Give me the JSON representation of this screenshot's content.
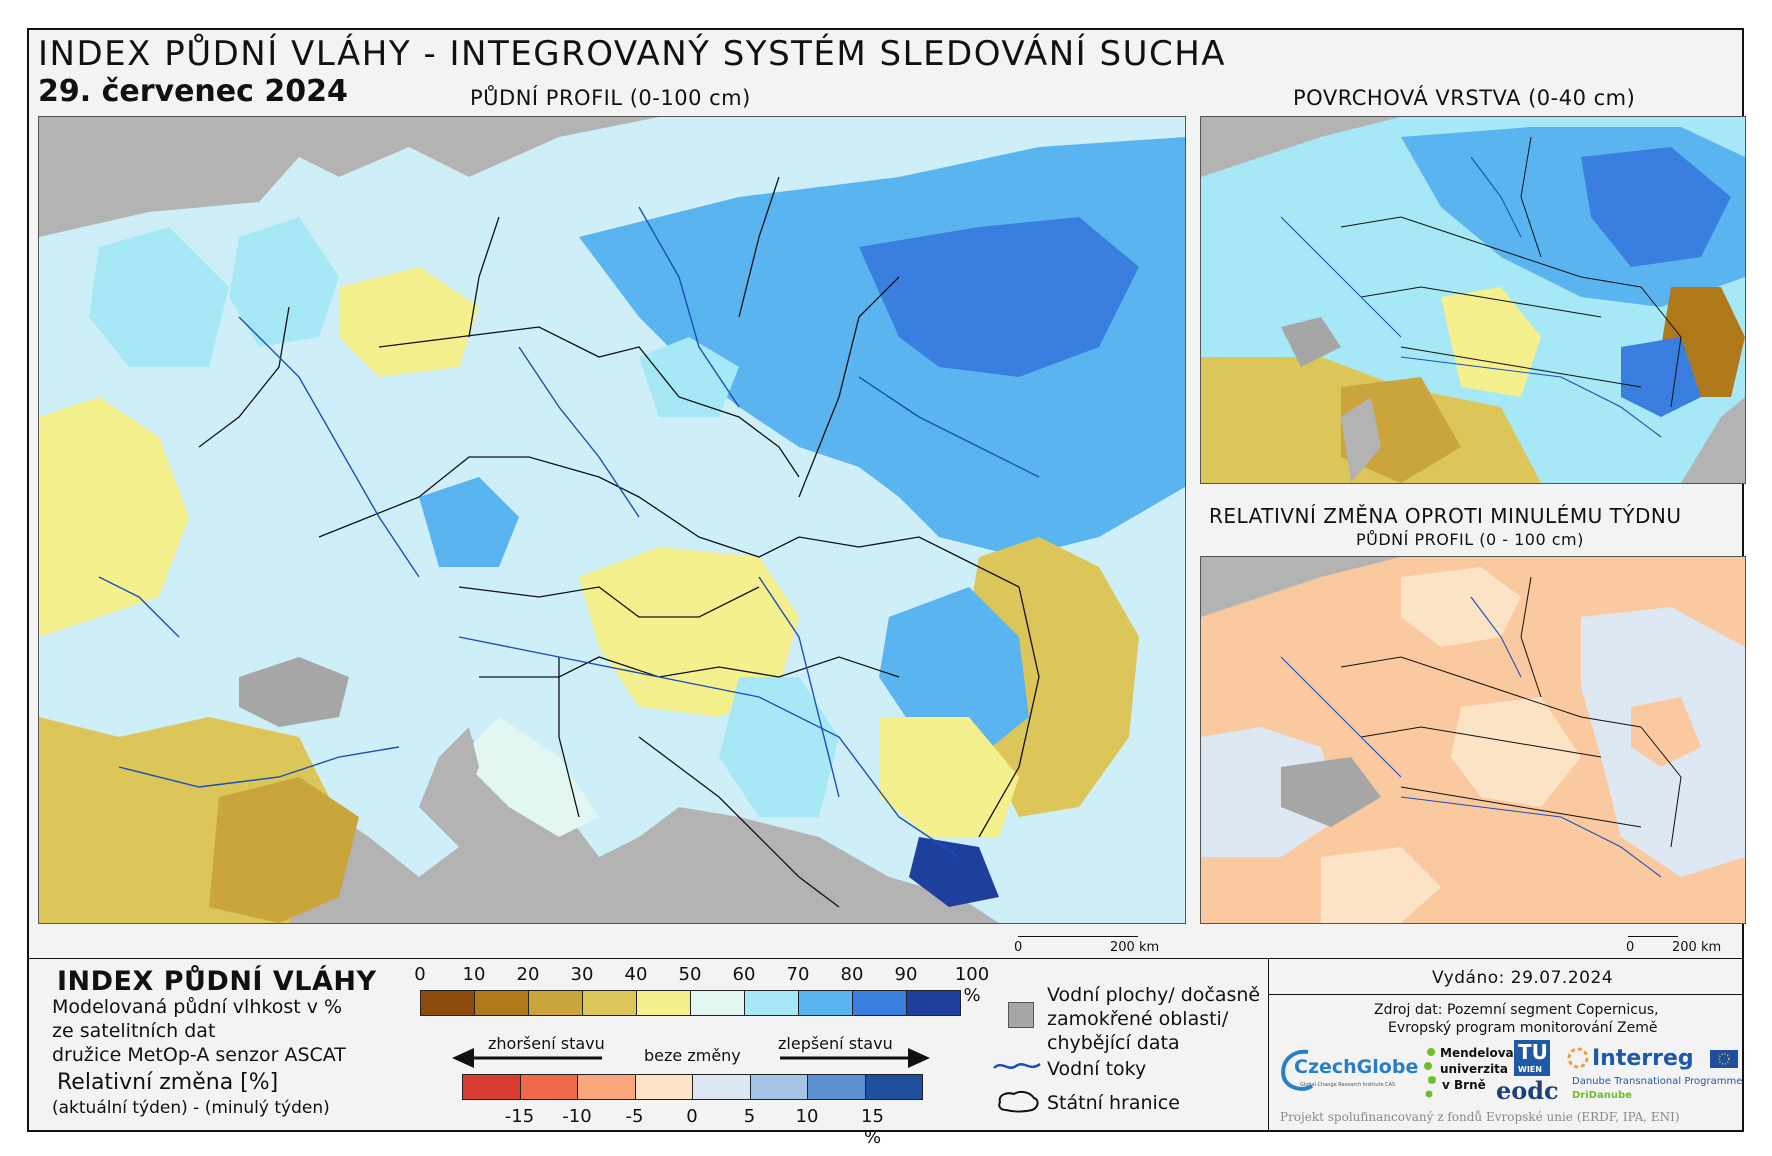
{
  "header": {
    "title": "INDEX PŮDNÍ VLÁHY - INTEGROVANÝ SYSTÉM SLEDOVÁNÍ SUCHA",
    "date": "29. červenec 2024"
  },
  "maps": {
    "main_label": "PŮDNÍ PROFIL (0-100 cm)",
    "surface_label": "POVRCHOVÁ VRSTVA (0-40 cm)",
    "change_label": "RELATIVNÍ ZMĚNA OPROTI MINULÉMU TÝDNU",
    "change_sublabel": "PŮDNÍ PROFIL (0 - 100 cm)",
    "scale_zero": "0",
    "scale_main": "200 km",
    "scale_small": "200 km"
  },
  "legend": {
    "title": "INDEX PŮDNÍ VLÁHY",
    "desc_line1": "Modelovaná půdní vlhkost v %",
    "desc_line2": "ze satelitních dat",
    "desc_line3": "družice MetOp-A senzor ASCAT",
    "change_title": "Relativní změna [%]",
    "change_desc": "(aktuální týden) - (minulý týden)",
    "moisture_ticks": [
      "0",
      "10",
      "20",
      "30",
      "40",
      "50",
      "60",
      "70",
      "80",
      "90",
      "100 %"
    ],
    "moisture_colors": [
      "#8c4a0c",
      "#b07a1c",
      "#c9a53c",
      "#dcc65a",
      "#f4f08e",
      "#e3f7f2",
      "#a6e8f5",
      "#5ab4f0",
      "#3a7fe0",
      "#1f3f9e"
    ],
    "worse_label": "zhoršení stavu",
    "no_change_label": "beze změny",
    "better_label": "zlepšení stavu",
    "change_ticks": [
      "-15",
      "-10",
      "-5",
      "0",
      "5",
      "10",
      "15 %"
    ],
    "change_colors": [
      "#d93b2e",
      "#ef6a4a",
      "#f7a77a",
      "#fde3c6",
      "#dde8f2",
      "#a6c4e6",
      "#5b8fd2",
      "#1f4e9e"
    ],
    "water_label_1": "Vodní plochy/ dočasně",
    "water_label_2": "zamokřené oblasti/",
    "water_label_3": "chybějící data",
    "rivers_label": "Vodní toky",
    "borders_label": "Státní hranice"
  },
  "info": {
    "issued": "Vydáno: 29.07.2024",
    "source_line1": "Zdroj dat: Pozemní segment Copernicus,",
    "source_line2": "Evropský program monitorování Země",
    "funding": "Projekt spolufinancovaný z fondů Evropské unie (ERDF, IPA, ENI)"
  },
  "logos": {
    "czechglobe": "CzechGlobe",
    "czechglobe_sub": "Global Change Research Institute CAS",
    "mendel_1": "Mendelova",
    "mendel_2": "univerzita",
    "mendel_3": "v Brně",
    "tu": "TU",
    "tu_sub": "WIEN",
    "eodc": "eodc",
    "interreg": "Interreg",
    "interreg_sub1": "Danube Transnational Programme",
    "interreg_sub2": "DriDanube"
  }
}
